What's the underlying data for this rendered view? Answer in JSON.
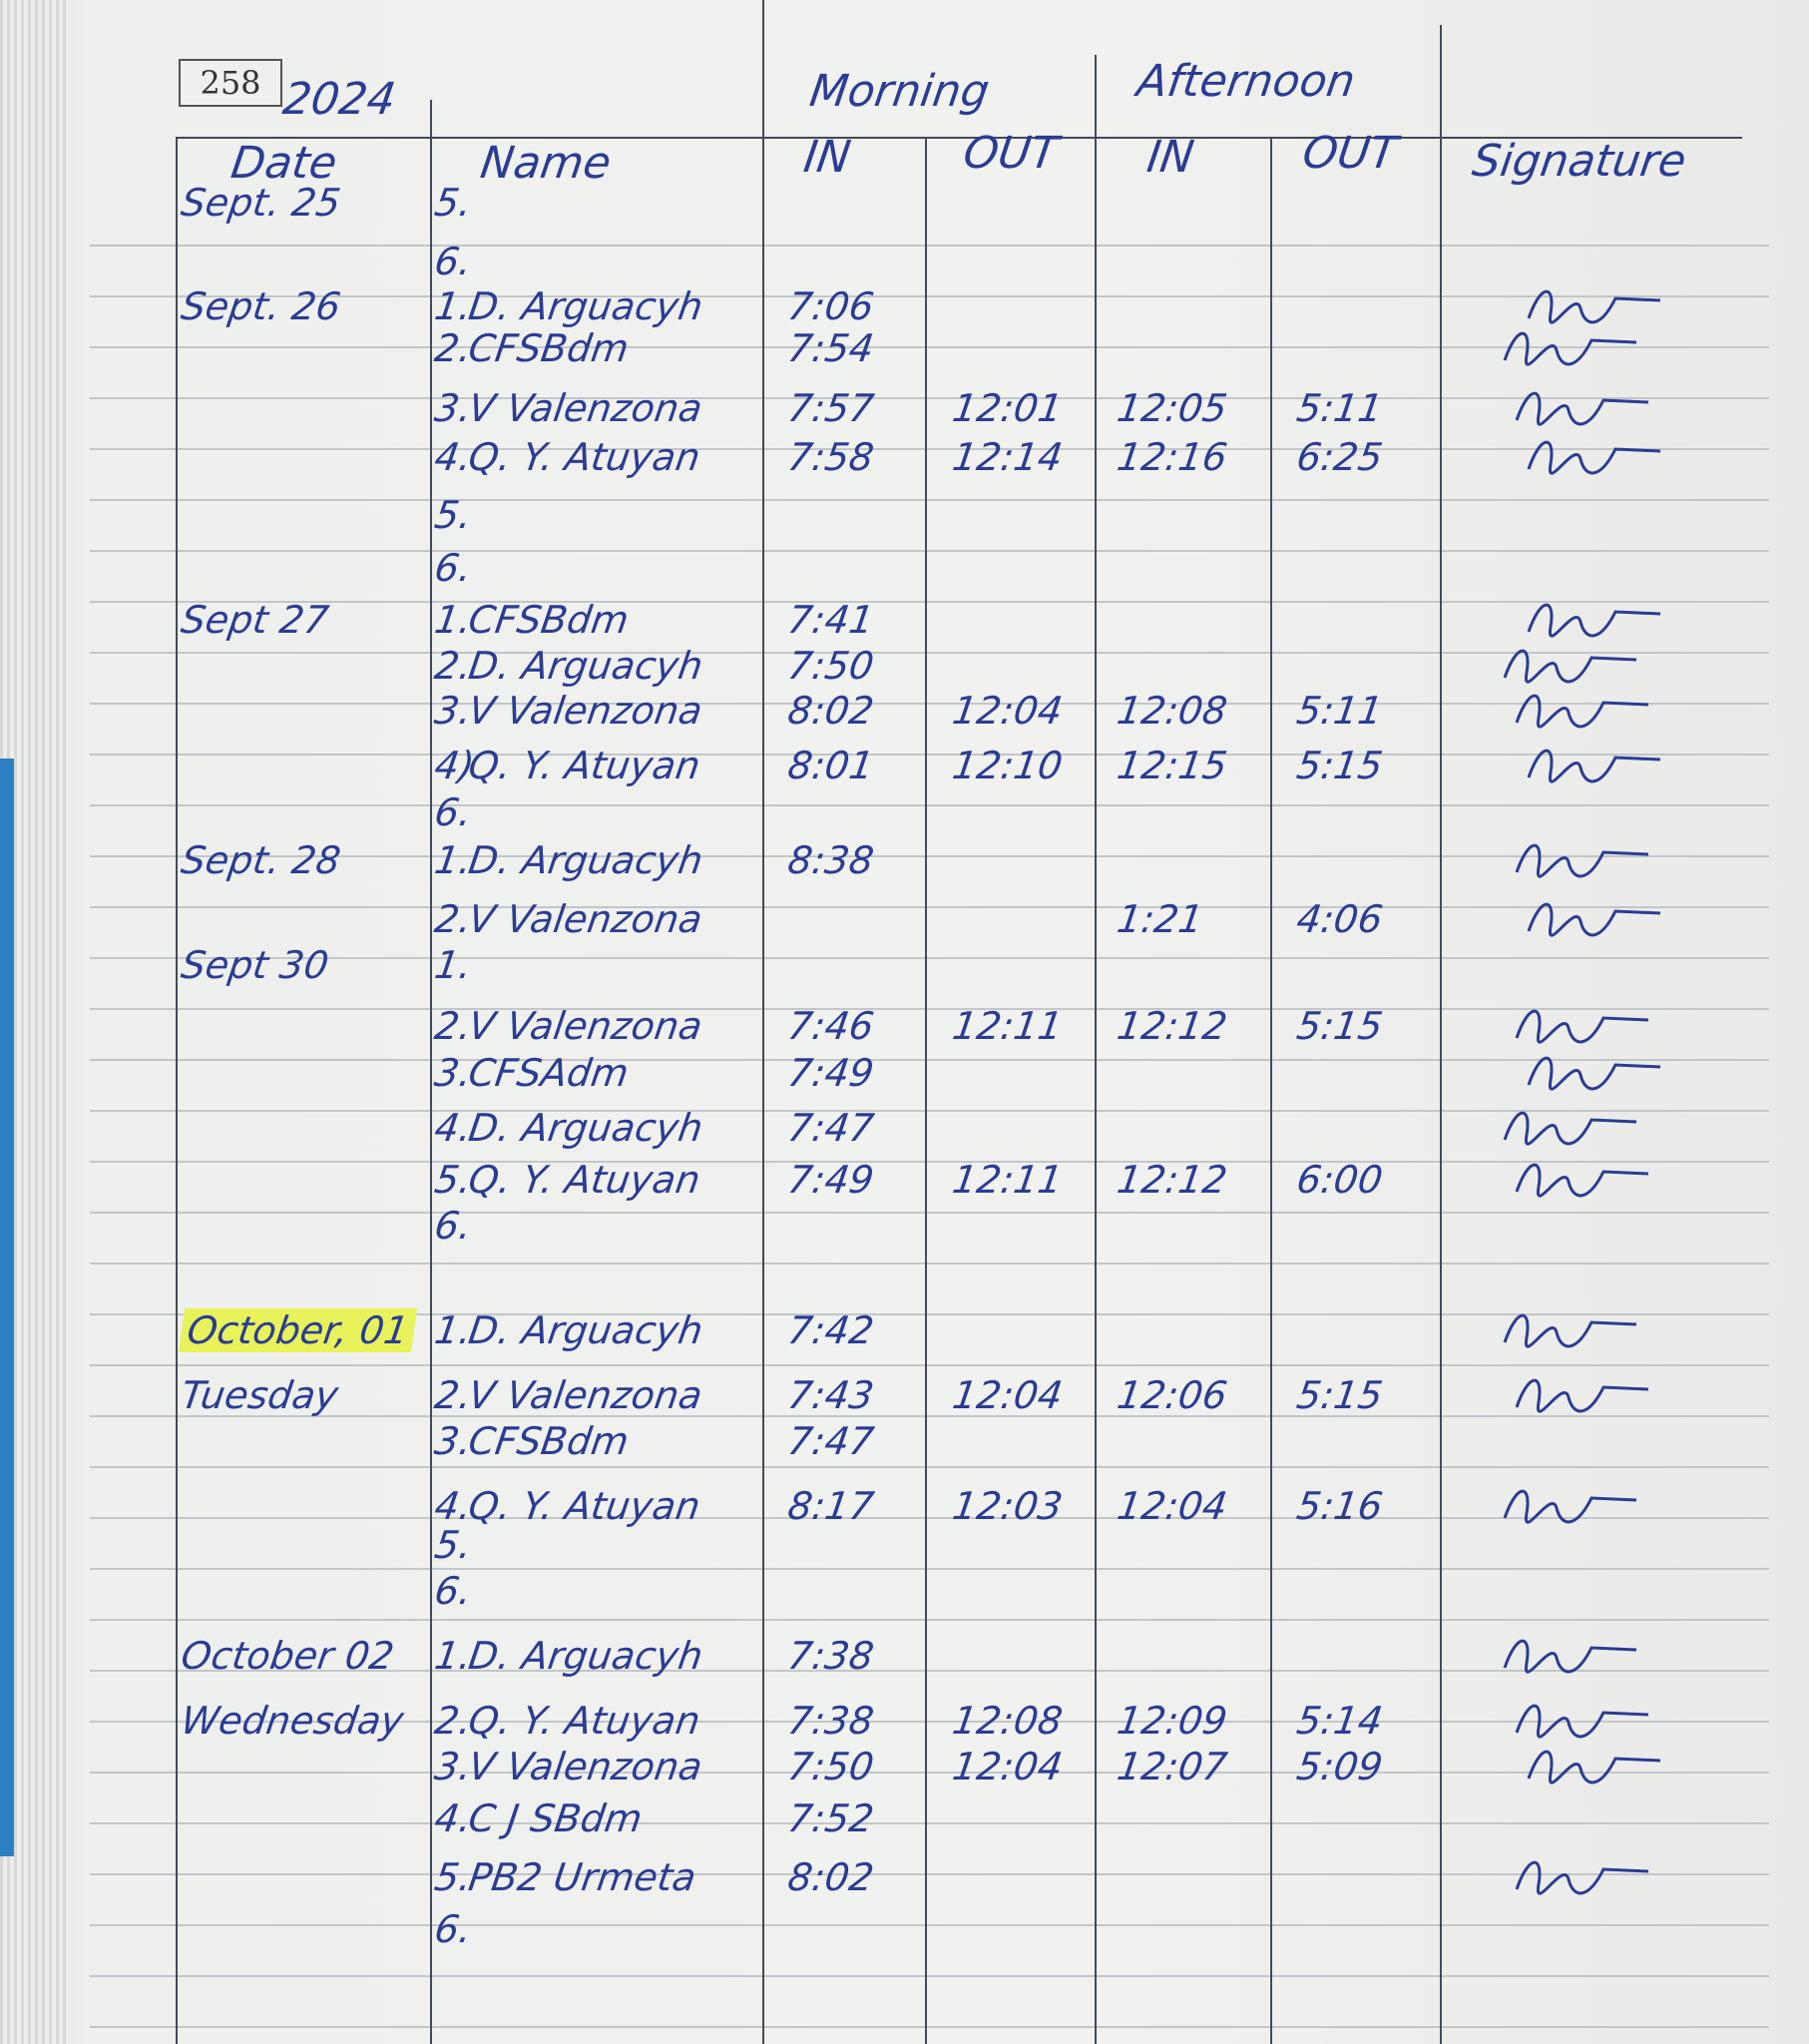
{
  "page_number": "258",
  "year": "2024",
  "header": {
    "morning": "Morning",
    "afternoon": "Afternoon",
    "date": "Date",
    "name": "Name",
    "am_in": "IN",
    "am_out": "OUT",
    "pm_in": "IN",
    "pm_out": "OUT",
    "signature": "Signature"
  },
  "highlight_color": "#e8f25a",
  "ink_color": "#2b3c93",
  "rows": [
    {
      "date": "Sept. 25",
      "no": "5.",
      "name": "",
      "am_in": "",
      "am_out": "",
      "pm_in": "",
      "pm_out": "",
      "signed": false
    },
    {
      "date": "",
      "no": "6.",
      "name": "",
      "am_in": "",
      "am_out": "",
      "pm_in": "",
      "pm_out": "",
      "signed": false
    },
    {
      "date": "Sept. 26",
      "no": "1.",
      "name": "D. Arguacyh",
      "am_in": "7:06",
      "am_out": "",
      "pm_in": "",
      "pm_out": "",
      "signed": true
    },
    {
      "date": "",
      "no": "2.",
      "name": "CFSBdm",
      "am_in": "7:54",
      "am_out": "",
      "pm_in": "",
      "pm_out": "",
      "signed": true
    },
    {
      "date": "",
      "no": "3.",
      "name": "V Valenzona",
      "am_in": "7:57",
      "am_out": "12:01",
      "pm_in": "12:05",
      "pm_out": "5:11",
      "signed": true
    },
    {
      "date": "",
      "no": "4.",
      "name": "Q. Y. Atuyan",
      "am_in": "7:58",
      "am_out": "12:14",
      "pm_in": "12:16",
      "pm_out": "6:25",
      "signed": true
    },
    {
      "date": "",
      "no": "5.",
      "name": "",
      "am_in": "",
      "am_out": "",
      "pm_in": "",
      "pm_out": "",
      "signed": false
    },
    {
      "date": "",
      "no": "6.",
      "name": "",
      "am_in": "",
      "am_out": "",
      "pm_in": "",
      "pm_out": "",
      "signed": false
    },
    {
      "date": "Sept 27",
      "no": "1.",
      "name": "CFSBdm",
      "am_in": "7:41",
      "am_out": "",
      "pm_in": "",
      "pm_out": "",
      "signed": true
    },
    {
      "date": "",
      "no": "2.",
      "name": "D. Arguacyh",
      "am_in": "7:50",
      "am_out": "",
      "pm_in": "",
      "pm_out": "",
      "signed": true
    },
    {
      "date": "",
      "no": "3.",
      "name": "V Valenzona",
      "am_in": "8:02",
      "am_out": "12:04",
      "pm_in": "12:08",
      "pm_out": "5:11",
      "signed": true
    },
    {
      "date": "",
      "no": "4)",
      "name": "Q. Y. Atuyan",
      "am_in": "8:01",
      "am_out": "12:10",
      "pm_in": "12:15",
      "pm_out": "5:15",
      "signed": true
    },
    {
      "date": "",
      "no": "6.",
      "name": "",
      "am_in": "",
      "am_out": "",
      "pm_in": "",
      "pm_out": "",
      "signed": false
    },
    {
      "date": "Sept. 28",
      "no": "1.",
      "name": "D. Arguacyh",
      "am_in": "8:38",
      "am_out": "",
      "pm_in": "",
      "pm_out": "",
      "signed": true
    },
    {
      "date": "",
      "no": "2.",
      "name": "V Valenzona",
      "am_in": "",
      "am_out": "",
      "pm_in": "1:21",
      "pm_out": "4:06",
      "signed": true
    },
    {
      "date": "Sept 30",
      "no": "1.",
      "name": "",
      "am_in": "",
      "am_out": "",
      "pm_in": "",
      "pm_out": "",
      "signed": false
    },
    {
      "date": "",
      "no": "2.",
      "name": "V Valenzona",
      "am_in": "7:46",
      "am_out": "12:11",
      "pm_in": "12:12",
      "pm_out": "5:15",
      "signed": true
    },
    {
      "date": "",
      "no": "3.",
      "name": "CFSAdm",
      "am_in": "7:49",
      "am_out": "",
      "pm_in": "",
      "pm_out": "",
      "signed": true
    },
    {
      "date": "",
      "no": "4.",
      "name": "D. Arguacyh",
      "am_in": "7:47",
      "am_out": "",
      "pm_in": "",
      "pm_out": "",
      "signed": true
    },
    {
      "date": "",
      "no": "5.",
      "name": "Q. Y. Atuyan",
      "am_in": "7:49",
      "am_out": "12:11",
      "pm_in": "12:12",
      "pm_out": "6:00",
      "signed": true
    },
    {
      "date": "",
      "no": "6.",
      "name": "",
      "am_in": "",
      "am_out": "",
      "pm_in": "",
      "pm_out": "",
      "signed": false
    },
    {
      "date": "October, 01",
      "no": "1.",
      "name": "D. Arguacyh",
      "am_in": "7:42",
      "am_out": "",
      "pm_in": "",
      "pm_out": "",
      "signed": true,
      "highlight": true
    },
    {
      "date": "Tuesday",
      "no": "2.",
      "name": "V Valenzona",
      "am_in": "7:43",
      "am_out": "12:04",
      "pm_in": "12:06",
      "pm_out": "5:15",
      "signed": true
    },
    {
      "date": "",
      "no": "3.",
      "name": "CFSBdm",
      "am_in": "7:47",
      "am_out": "",
      "pm_in": "",
      "pm_out": "",
      "signed": false
    },
    {
      "date": "",
      "no": "4.",
      "name": "Q. Y. Atuyan",
      "am_in": "8:17",
      "am_out": "12:03",
      "pm_in": "12:04",
      "pm_out": "5:16",
      "signed": true
    },
    {
      "date": "",
      "no": "5.",
      "name": "",
      "am_in": "",
      "am_out": "",
      "pm_in": "",
      "pm_out": "",
      "signed": false
    },
    {
      "date": "",
      "no": "6.",
      "name": "",
      "am_in": "",
      "am_out": "",
      "pm_in": "",
      "pm_out": "",
      "signed": false
    },
    {
      "date": "October 02",
      "no": "1.",
      "name": "D. Arguacyh",
      "am_in": "7:38",
      "am_out": "",
      "pm_in": "",
      "pm_out": "",
      "signed": true
    },
    {
      "date": "Wednesday",
      "no": "2.",
      "name": "Q. Y. Atuyan",
      "am_in": "7:38",
      "am_out": "12:08",
      "pm_in": "12:09",
      "pm_out": "5:14",
      "signed": true
    },
    {
      "date": "",
      "no": "3.",
      "name": "V Valenzona",
      "am_in": "7:50",
      "am_out": "12:04",
      "pm_in": "12:07",
      "pm_out": "5:09",
      "signed": true
    },
    {
      "date": "",
      "no": "4.",
      "name": "C J SBdm",
      "am_in": "7:52",
      "am_out": "",
      "pm_in": "",
      "pm_out": "",
      "signed": false
    },
    {
      "date": "",
      "no": "5.",
      "name": "PB2 Urmeta",
      "am_in": "8:02",
      "am_out": "",
      "pm_in": "",
      "pm_out": "",
      "signed": true
    },
    {
      "date": "",
      "no": "6.",
      "name": "",
      "am_in": "",
      "am_out": "",
      "pm_in": "",
      "pm_out": "",
      "signed": false
    }
  ]
}
